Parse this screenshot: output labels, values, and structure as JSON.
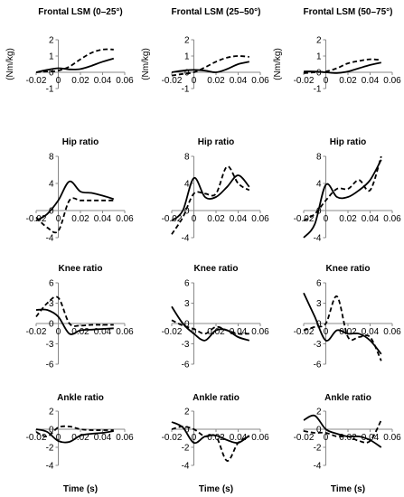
{
  "chart_data": [
    {
      "type": "line",
      "row": 0,
      "col": 0,
      "title": "Frontal LSM (0–25°)",
      "ylabel": "(Nm/kg)",
      "xlabel": "",
      "xlim": [
        -0.02,
        0.06
      ],
      "ylim": [
        -1,
        2
      ],
      "xticks": [
        "-0.02",
        "0",
        "0.02",
        "0.04",
        "0.06"
      ],
      "yticks": [
        "-1",
        "0",
        "1",
        "2"
      ],
      "series": [
        {
          "style": "solid",
          "x": [
            -0.02,
            -0.01,
            0.0,
            0.01,
            0.02,
            0.03,
            0.04,
            0.05
          ],
          "y": [
            0.0,
            0.15,
            0.25,
            0.18,
            0.2,
            0.4,
            0.65,
            0.85
          ]
        },
        {
          "style": "dashed",
          "x": [
            -0.02,
            -0.01,
            0.0,
            0.01,
            0.02,
            0.03,
            0.04,
            0.05
          ],
          "y": [
            0.0,
            0.05,
            0.1,
            0.35,
            0.8,
            1.2,
            1.4,
            1.4
          ]
        }
      ]
    },
    {
      "type": "line",
      "row": 0,
      "col": 1,
      "title": "Frontal LSM (25–50°)",
      "ylabel": "(Nm/kg)",
      "xlabel": "",
      "xlim": [
        -0.02,
        0.06
      ],
      "ylim": [
        -1,
        2
      ],
      "xticks": [
        "-0.02",
        "0",
        "0.02",
        "0.04",
        "0.06"
      ],
      "yticks": [
        "-1",
        "0",
        "1",
        "2"
      ],
      "series": [
        {
          "style": "solid",
          "x": [
            -0.02,
            -0.01,
            0.0,
            0.01,
            0.02,
            0.03,
            0.04,
            0.05
          ],
          "y": [
            0.0,
            0.1,
            0.15,
            0.1,
            0.0,
            0.2,
            0.5,
            0.65
          ]
        },
        {
          "style": "dashed",
          "x": [
            -0.02,
            -0.01,
            0.0,
            0.01,
            0.02,
            0.03,
            0.04,
            0.05
          ],
          "y": [
            -0.2,
            -0.1,
            0.0,
            0.3,
            0.65,
            0.9,
            1.0,
            0.95
          ]
        }
      ]
    },
    {
      "type": "line",
      "row": 0,
      "col": 2,
      "title": "Frontal LSM (50–75°)",
      "ylabel": "(Nm/kg)",
      "xlabel": "",
      "xlim": [
        -0.02,
        0.06
      ],
      "ylim": [
        -1,
        2
      ],
      "xticks": [
        "-0.02",
        "0",
        "0.02",
        "0.04",
        "0.06"
      ],
      "yticks": [
        "-1",
        "0",
        "1",
        "2"
      ],
      "series": [
        {
          "style": "solid",
          "x": [
            -0.02,
            -0.01,
            0.0,
            0.01,
            0.02,
            0.03,
            0.04,
            0.05
          ],
          "y": [
            0.05,
            0.05,
            0.0,
            -0.05,
            0.05,
            0.25,
            0.45,
            0.6
          ]
        },
        {
          "style": "dashed",
          "x": [
            -0.02,
            -0.01,
            0.0,
            0.01,
            0.02,
            0.03,
            0.04,
            0.05
          ],
          "y": [
            -0.05,
            0.0,
            0.05,
            0.25,
            0.55,
            0.7,
            0.8,
            0.75
          ]
        }
      ]
    },
    {
      "type": "line",
      "row": 1,
      "col": 0,
      "title": "Hip ratio",
      "ylabel": "",
      "xlabel": "",
      "xlim": [
        -0.02,
        0.06
      ],
      "ylim": [
        -4,
        8
      ],
      "xticks": [
        "-0.02",
        "0",
        "0.02",
        "0.04",
        "0.06"
      ],
      "yticks": [
        "-4",
        "0",
        "4",
        "8"
      ],
      "series": [
        {
          "style": "solid",
          "x": [
            -0.02,
            -0.01,
            0.0,
            0.01,
            0.02,
            0.03,
            0.04,
            0.05
          ],
          "y": [
            -1.5,
            -0.5,
            1.5,
            4.3,
            2.8,
            2.6,
            2.2,
            1.7
          ]
        },
        {
          "style": "dashed",
          "x": [
            -0.02,
            -0.01,
            0.0,
            0.01,
            0.02,
            0.03,
            0.04,
            0.05
          ],
          "y": [
            -1.0,
            -2.5,
            -3.0,
            1.5,
            1.5,
            1.5,
            1.5,
            1.5
          ]
        }
      ]
    },
    {
      "type": "line",
      "row": 1,
      "col": 1,
      "title": "Hip ratio",
      "ylabel": "",
      "xlabel": "",
      "xlim": [
        -0.02,
        0.06
      ],
      "ylim": [
        -4,
        8
      ],
      "xticks": [
        "-0.02",
        "0",
        "0.02",
        "0.04",
        "0.06"
      ],
      "yticks": [
        "-4",
        "0",
        "4",
        "8"
      ],
      "series": [
        {
          "style": "solid",
          "x": [
            -0.02,
            -0.01,
            0.0,
            0.01,
            0.02,
            0.03,
            0.04,
            0.05
          ],
          "y": [
            -1.5,
            0.0,
            4.8,
            2.0,
            2.0,
            3.5,
            5.2,
            3.5
          ]
        },
        {
          "style": "dashed",
          "x": [
            -0.02,
            -0.01,
            0.0,
            0.01,
            0.02,
            0.03,
            0.04,
            0.05
          ],
          "y": [
            -3.5,
            -1.0,
            2.5,
            2.5,
            2.5,
            6.5,
            4.0,
            3.0
          ]
        }
      ]
    },
    {
      "type": "line",
      "row": 1,
      "col": 2,
      "title": "Hip ratio",
      "ylabel": "",
      "xlabel": "",
      "xlim": [
        -0.02,
        0.06
      ],
      "ylim": [
        -4,
        8
      ],
      "xticks": [
        "-0.02",
        "0",
        "0.02",
        "0.04",
        "0.06"
      ],
      "yticks": [
        "-4",
        "0",
        "4",
        "8"
      ],
      "series": [
        {
          "style": "solid",
          "x": [
            -0.02,
            -0.01,
            0.0,
            0.01,
            0.02,
            0.03,
            0.04,
            0.05
          ],
          "y": [
            -4.0,
            -2.0,
            3.8,
            2.0,
            2.0,
            3.0,
            4.5,
            7.5
          ]
        },
        {
          "style": "dashed",
          "x": [
            -0.02,
            -0.01,
            0.0,
            0.01,
            0.02,
            0.03,
            0.04,
            0.05
          ],
          "y": [
            -1.5,
            -0.5,
            1.5,
            3.2,
            3.2,
            4.5,
            3.0,
            8.0
          ]
        }
      ]
    },
    {
      "type": "line",
      "row": 2,
      "col": 0,
      "title": "Knee ratio",
      "ylabel": "",
      "xlabel": "",
      "xlim": [
        -0.02,
        0.06
      ],
      "ylim": [
        -6,
        6
      ],
      "xticks": [
        "-0.02",
        "0",
        "0.02",
        "0.04",
        "0.06"
      ],
      "yticks": [
        "-6",
        "-3",
        "0",
        "3",
        "6"
      ],
      "series": [
        {
          "style": "solid",
          "x": [
            -0.02,
            -0.01,
            0.0,
            0.01,
            0.02,
            0.03,
            0.04,
            0.05
          ],
          "y": [
            2.0,
            2.0,
            1.0,
            -1.5,
            -1.0,
            -0.9,
            -0.8,
            -0.7
          ]
        },
        {
          "style": "dashed",
          "x": [
            -0.02,
            -0.01,
            0.0,
            0.01,
            0.02,
            0.03,
            0.04,
            0.05
          ],
          "y": [
            1.0,
            3.0,
            3.8,
            0.0,
            -0.3,
            -0.2,
            -0.2,
            -0.2
          ]
        }
      ]
    },
    {
      "type": "line",
      "row": 2,
      "col": 1,
      "title": "Knee ratio",
      "ylabel": "",
      "xlabel": "",
      "xlim": [
        -0.02,
        0.06
      ],
      "ylim": [
        -6,
        6
      ],
      "xticks": [
        "-0.02",
        "0",
        "0.02",
        "0.04",
        "0.06"
      ],
      "yticks": [
        "-6",
        "-3",
        "0",
        "3",
        "6"
      ],
      "series": [
        {
          "style": "solid",
          "x": [
            -0.02,
            -0.01,
            0.0,
            0.01,
            0.02,
            0.03,
            0.04,
            0.05
          ],
          "y": [
            2.5,
            0.0,
            -1.5,
            -2.5,
            -1.0,
            -1.0,
            -2.0,
            -2.5
          ]
        },
        {
          "style": "dashed",
          "x": [
            -0.02,
            -0.01,
            0.0,
            0.01,
            0.02,
            0.03,
            0.04,
            0.05
          ],
          "y": [
            0.5,
            -0.3,
            -0.8,
            -1.5,
            -0.5,
            -1.0,
            -1.5,
            -1.5
          ]
        }
      ]
    },
    {
      "type": "line",
      "row": 2,
      "col": 2,
      "title": "Knee ratio",
      "ylabel": "",
      "xlabel": "",
      "xlim": [
        -0.02,
        0.06
      ],
      "ylim": [
        -6,
        6
      ],
      "xticks": [
        "-0.02",
        "0",
        "0.02",
        "0.04",
        "0.06"
      ],
      "yticks": [
        "-6",
        "-3",
        "0",
        "3",
        "6"
      ],
      "series": [
        {
          "style": "solid",
          "x": [
            -0.02,
            -0.01,
            0.0,
            0.01,
            0.02,
            0.03,
            0.04,
            0.05
          ],
          "y": [
            4.5,
            1.0,
            -2.5,
            -1.0,
            -1.5,
            -1.5,
            -2.5,
            -4.5
          ]
        },
        {
          "style": "dashed",
          "x": [
            -0.02,
            -0.01,
            0.0,
            0.01,
            0.02,
            0.03,
            0.04,
            0.05
          ],
          "y": [
            -1.0,
            -0.5,
            0.0,
            4.0,
            -2.0,
            -2.0,
            -2.0,
            -5.5
          ]
        }
      ]
    },
    {
      "type": "line",
      "row": 3,
      "col": 0,
      "title": "Ankle ratio",
      "ylabel": "",
      "xlabel": "Time (s)",
      "xlim": [
        -0.02,
        0.06
      ],
      "ylim": [
        -4,
        2
      ],
      "xticks": [
        "-0.02",
        "0",
        "0.02",
        "0.04",
        "0.06"
      ],
      "yticks": [
        "-4",
        "-2",
        "0",
        "2"
      ],
      "series": [
        {
          "style": "solid",
          "x": [
            -0.02,
            -0.01,
            0.0,
            0.01,
            0.02,
            0.03,
            0.04,
            0.05
          ],
          "y": [
            0.0,
            -0.3,
            -1.3,
            -1.4,
            -0.7,
            -0.5,
            -0.4,
            -0.2
          ]
        },
        {
          "style": "dashed",
          "x": [
            -0.02,
            -0.01,
            0.0,
            0.01,
            0.02,
            0.03,
            0.04,
            0.05
          ],
          "y": [
            -0.3,
            -0.8,
            0.2,
            0.3,
            0.0,
            -0.1,
            -0.1,
            -0.1
          ]
        }
      ]
    },
    {
      "type": "line",
      "row": 3,
      "col": 1,
      "title": "Ankle ratio",
      "ylabel": "",
      "xlabel": "Time (s)",
      "xlim": [
        -0.02,
        0.06
      ],
      "ylim": [
        -4,
        2
      ],
      "xticks": [
        "-0.02",
        "0",
        "0.02",
        "0.04",
        "0.06"
      ],
      "yticks": [
        "-4",
        "-2",
        "0",
        "2"
      ],
      "series": [
        {
          "style": "solid",
          "x": [
            -0.02,
            -0.01,
            0.0,
            0.01,
            0.02,
            0.03,
            0.04,
            0.05
          ],
          "y": [
            0.8,
            0.2,
            -1.5,
            -0.8,
            -0.7,
            -1.2,
            -1.5,
            -0.7
          ]
        },
        {
          "style": "dashed",
          "x": [
            -0.02,
            -0.01,
            0.0,
            0.01,
            0.02,
            0.03,
            0.04,
            0.05
          ],
          "y": [
            0.0,
            0.3,
            0.0,
            -0.8,
            -0.8,
            -3.5,
            -1.5,
            -0.8
          ]
        }
      ]
    },
    {
      "type": "line",
      "row": 3,
      "col": 2,
      "title": "Ankle ratio",
      "ylabel": "",
      "xlabel": "Time (s)",
      "xlim": [
        -0.02,
        0.06
      ],
      "ylim": [
        -4,
        2
      ],
      "xticks": [
        "-0.02",
        "0",
        "0.02",
        "0.04",
        "0.06"
      ],
      "yticks": [
        "-4",
        "-2",
        "0",
        "2"
      ],
      "series": [
        {
          "style": "solid",
          "x": [
            -0.02,
            -0.01,
            0.0,
            0.01,
            0.02,
            0.03,
            0.04,
            0.05
          ],
          "y": [
            1.0,
            1.5,
            0.0,
            -0.5,
            -0.8,
            -0.8,
            -1.2,
            -2.0
          ]
        },
        {
          "style": "dashed",
          "x": [
            -0.02,
            -0.01,
            0.0,
            0.01,
            0.02,
            0.03,
            0.04,
            0.05
          ],
          "y": [
            -0.2,
            -0.4,
            -0.4,
            -0.8,
            -0.8,
            -1.3,
            -1.3,
            1.0
          ]
        }
      ]
    }
  ]
}
